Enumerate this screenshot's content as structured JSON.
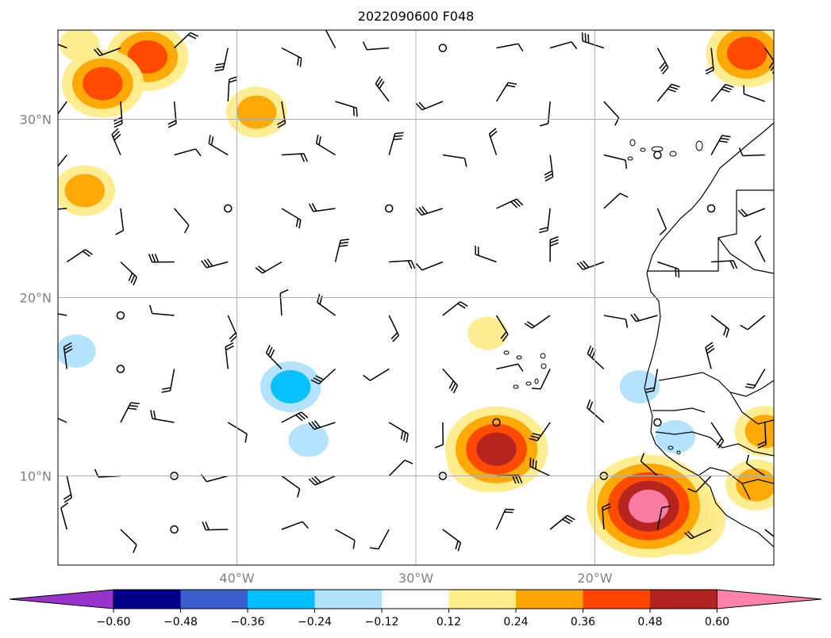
{
  "chart_data": {
    "type": "heatmap",
    "title": "2022090600 F048",
    "projection": "map",
    "xlim": [
      -50,
      -10
    ],
    "ylim": [
      5,
      35
    ],
    "grid": true,
    "x_ticks": [
      {
        "value": -40,
        "label": "40°W"
      },
      {
        "value": -30,
        "label": "30°W"
      },
      {
        "value": -20,
        "label": "20°W"
      }
    ],
    "y_ticks": [
      {
        "value": 30,
        "label": "30°N"
      },
      {
        "value": 20,
        "label": "20°N"
      },
      {
        "value": 10,
        "label": "10°N"
      }
    ],
    "colorbar": {
      "orientation": "horizontal",
      "position": "bottom",
      "extend": "both",
      "levels": [
        -0.6,
        -0.48,
        -0.36,
        -0.24,
        -0.12,
        0.12,
        0.24,
        0.36,
        0.48,
        0.6
      ],
      "tick_labels": [
        "−0.60",
        "−0.48",
        "−0.36",
        "−0.24",
        "−0.12",
        "0.12",
        "0.24",
        "0.36",
        "0.48",
        "0.60"
      ],
      "colors": [
        "#9932cc",
        "#00008b",
        "#3a5fcd",
        "#00bfff",
        "#b0e2ff",
        "#ffffff",
        "#ffec8b",
        "#ffa500",
        "#ff4500",
        "#b22222",
        "#ff82ab"
      ]
    },
    "shaded_regions": [
      {
        "lon": -45.0,
        "lat": 33.5,
        "value": 0.4
      },
      {
        "lon": -47.5,
        "lat": 32.0,
        "value": 0.4
      },
      {
        "lon": -48.8,
        "lat": 34.2,
        "value": 0.2
      },
      {
        "lon": -38.9,
        "lat": 30.4,
        "value": 0.3
      },
      {
        "lon": -48.5,
        "lat": 26.0,
        "value": 0.25
      },
      {
        "lon": -11.5,
        "lat": 33.7,
        "value": 0.4
      },
      {
        "lon": -26.0,
        "lat": 18.0,
        "value": 0.2
      },
      {
        "lon": -37.0,
        "lat": 15.0,
        "value": -0.3
      },
      {
        "lon": -36.0,
        "lat": 12.0,
        "value": -0.2
      },
      {
        "lon": -49.0,
        "lat": 17.0,
        "value": -0.2
      },
      {
        "lon": -17.5,
        "lat": 15.0,
        "value": -0.2
      },
      {
        "lon": -15.5,
        "lat": 12.2,
        "value": -0.2
      },
      {
        "lon": -26.0,
        "lat": 11.0,
        "value": 0.4
      },
      {
        "lon": -25.5,
        "lat": 11.5,
        "value": 0.5
      },
      {
        "lon": -15.0,
        "lat": 7.5,
        "value": 0.45
      },
      {
        "lon": -16.0,
        "lat": 8.0,
        "value": 0.55
      },
      {
        "lon": -17.0,
        "lat": 8.3,
        "value": 0.65
      },
      {
        "lon": -11.0,
        "lat": 9.5,
        "value": 0.3
      },
      {
        "lon": -10.5,
        "lat": 12.5,
        "value": 0.3
      }
    ]
  }
}
